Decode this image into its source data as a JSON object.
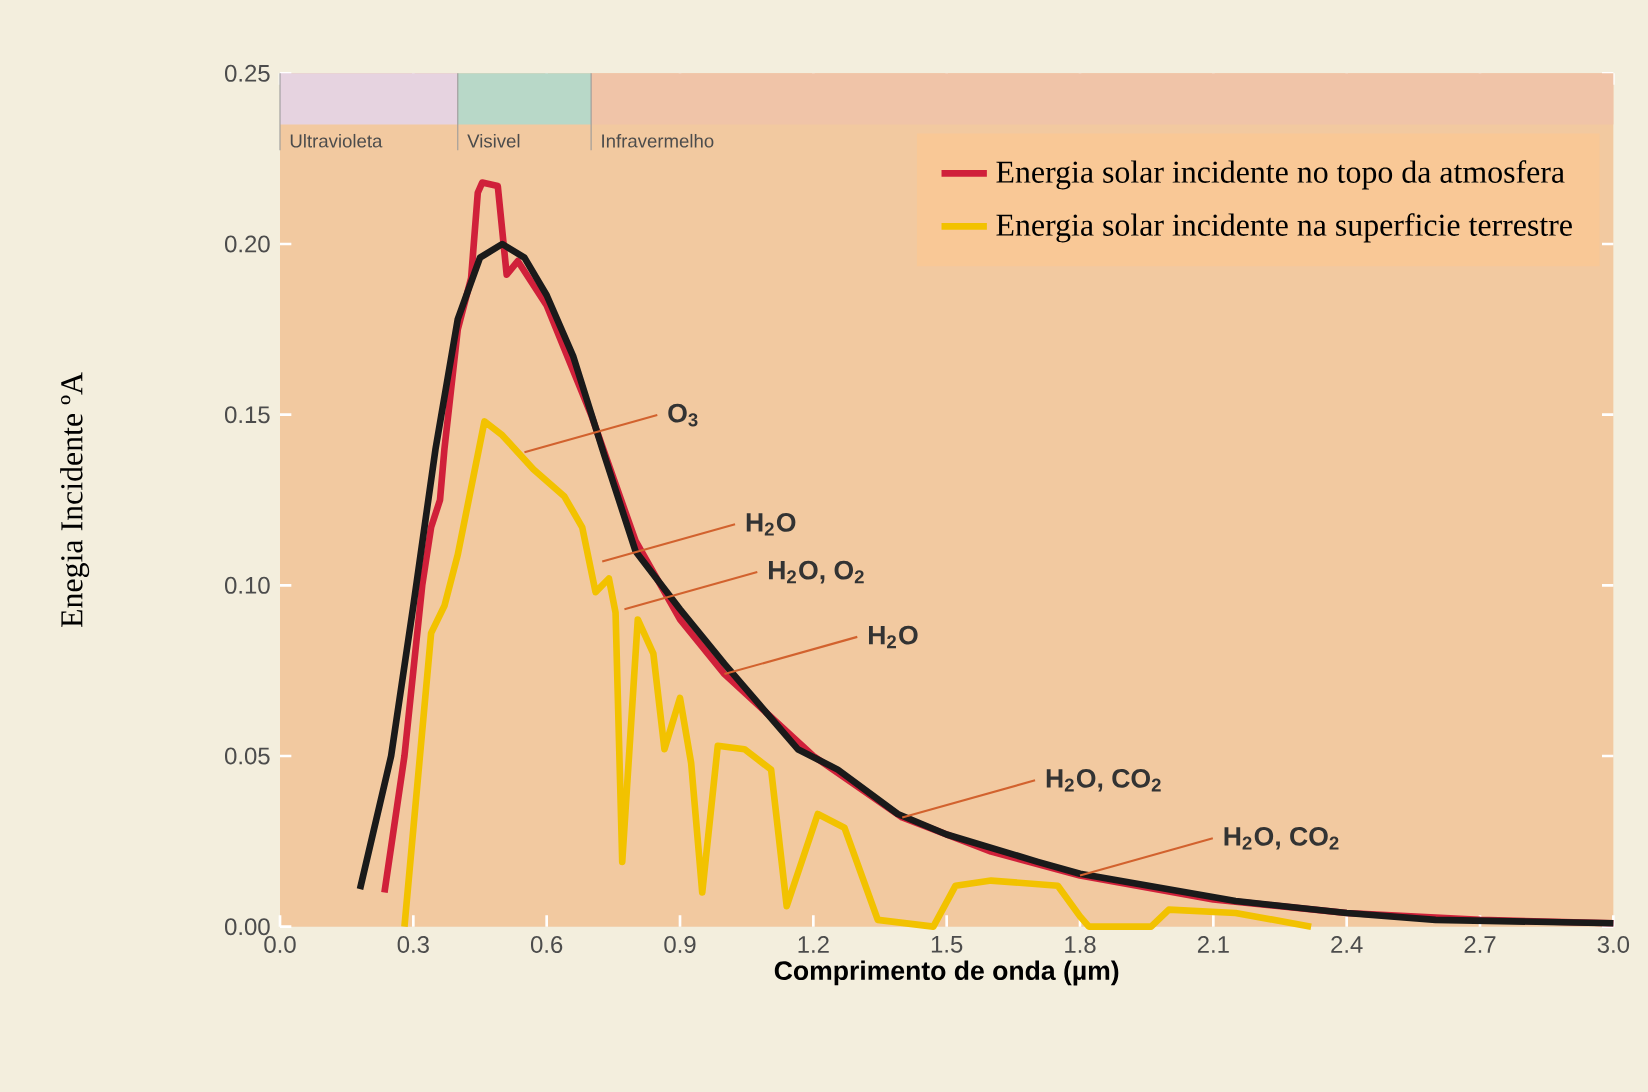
{
  "chart_data": {
    "type": "line",
    "xlabel": "Comprimento de onda (µm)",
    "ylabel": "Enegia Incidente ºA",
    "xlim": [
      0,
      3.0
    ],
    "ylim": [
      0,
      0.25
    ],
    "xticks": [
      {
        "value": 0,
        "label": "0.0"
      },
      0.3,
      0.6,
      0.9,
      1.2,
      1.5,
      1.8,
      2.1,
      2.4,
      2.7,
      {
        "value": 3.0,
        "label": "3.0"
      }
    ],
    "yticks": [
      {
        "value": 0,
        "label": "0.00"
      },
      {
        "value": 0.05,
        "label": "0.05"
      },
      {
        "value": 0.1,
        "label": "0.10"
      },
      {
        "value": 0.15,
        "label": "0.15"
      },
      {
        "value": 0.2,
        "label": "0.20"
      },
      {
        "value": 0.25,
        "label": "0.25"
      }
    ],
    "legend": "top right",
    "series": [
      {
        "name": "Energia solar incidente no topo da atmosfera",
        "color": "#d0203a",
        "x": [
          0.235,
          0.28,
          0.32,
          0.34,
          0.36,
          0.37,
          0.4,
          0.43,
          0.445,
          0.455,
          0.49,
          0.51,
          0.535,
          0.6,
          0.7,
          0.8,
          0.9,
          1.0,
          1.2,
          1.4,
          1.6,
          1.8,
          2.1,
          2.4,
          2.7,
          3.0
        ],
        "values": [
          0.01,
          0.05,
          0.1,
          0.117,
          0.125,
          0.14,
          0.175,
          0.19,
          0.215,
          0.218,
          0.217,
          0.191,
          0.195,
          0.182,
          0.15,
          0.113,
          0.09,
          0.074,
          0.05,
          0.032,
          0.022,
          0.015,
          0.008,
          0.004,
          0.002,
          0.001
        ]
      },
      {
        "name": "Energia solar incidente na superficie terrestre",
        "color": "#f2c200",
        "x": [
          0.28,
          0.34,
          0.37,
          0.4,
          0.46,
          0.5,
          0.57,
          0.64,
          0.68,
          0.71,
          0.74,
          0.755,
          0.77,
          0.805,
          0.84,
          0.865,
          0.9,
          0.925,
          0.95,
          0.985,
          1.045,
          1.105,
          1.14,
          1.21,
          1.27,
          1.345,
          1.47,
          1.52,
          1.6,
          1.75,
          1.8,
          1.82,
          1.96,
          2.0,
          2.15,
          2.32
        ],
        "values": [
          0.0,
          0.086,
          0.094,
          0.109,
          0.148,
          0.144,
          0.134,
          0.126,
          0.117,
          0.098,
          0.102,
          0.092,
          0.019,
          0.09,
          0.08,
          0.052,
          0.067,
          0.048,
          0.01,
          0.053,
          0.052,
          0.046,
          0.006,
          0.033,
          0.029,
          0.002,
          0.0,
          0.012,
          0.0135,
          0.012,
          0.003,
          0.0,
          0.0,
          0.005,
          0.004,
          0.0
        ]
      },
      {
        "color": "#1a1a1a",
        "x": [
          0.18,
          0.25,
          0.3,
          0.35,
          0.4,
          0.45,
          0.5,
          0.55,
          0.6,
          0.66,
          0.73,
          0.8,
          0.9,
          1.0,
          1.165,
          1.255,
          1.39,
          1.5,
          1.705,
          1.8,
          2.15,
          2.4,
          2.6,
          3.0
        ],
        "values": [
          0.011,
          0.05,
          0.094,
          0.14,
          0.178,
          0.196,
          0.2,
          0.196,
          0.185,
          0.167,
          0.138,
          0.11,
          0.093,
          0.077,
          0.052,
          0.046,
          0.033,
          0.027,
          0.019,
          0.0155,
          0.0075,
          0.004,
          0.002,
          0.001
        ]
      }
    ],
    "bands": [
      {
        "axis": "x",
        "from": 0,
        "to": 0.4,
        "label": "Ultravioleta",
        "color": "#e6d3e0"
      },
      {
        "axis": "x",
        "from": 0.4,
        "to": 0.7,
        "label": "Visivel",
        "color": "#b8d8c8"
      },
      {
        "axis": "x",
        "from": 0.7,
        "to": 3.0,
        "label": "Infravermelho",
        "color": "#f0c4a8"
      }
    ],
    "annotations": [
      {
        "text": "O$_{3}$",
        "x": 0.55,
        "y": 0.139
      },
      {
        "text": "H$_{2}$O",
        "x": 0.725,
        "y": 0.107
      },
      {
        "text": "H$_{2}$O, O$_{2}$",
        "x": 0.775,
        "y": 0.093
      },
      {
        "text": "H$_{2}$O",
        "x": 1.0,
        "y": 0.074
      },
      {
        "text": "H$_{2}$O, CO$_{2}$",
        "x": 1.4,
        "y": 0.032
      },
      {
        "text": "H$_{2}$O, CO$_{2}$",
        "x": 1.8,
        "y": 0.015
      }
    ]
  }
}
